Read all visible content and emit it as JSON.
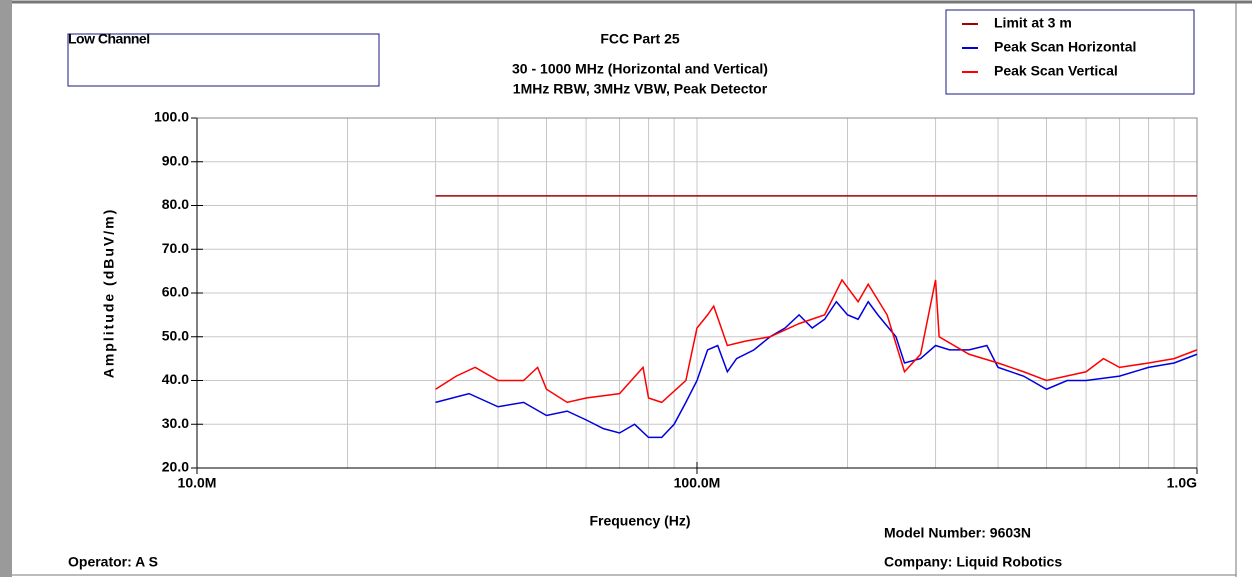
{
  "chart_data": {
    "type": "line",
    "title": "FCC Part 25",
    "subtitle": [
      "30 - 1000 MHz (Horizontal and Vertical)",
      "1MHz RBW, 3MHz VBW, Peak Detector"
    ],
    "box_label": "Low Channel",
    "xlabel": "Frequency (Hz)",
    "ylabel": "Amplitude (dBuV/m)",
    "model": "Model Number: 9603N",
    "operator": "Operator: A S",
    "company": "Company: Liquid Robotics",
    "xscale": "log",
    "grid": true,
    "legend": "upper right",
    "xlim": [
      10000000,
      1000000000
    ],
    "xticks": [
      {
        "value": 10000000,
        "label": "10.0M"
      },
      {
        "value": 100000000,
        "label": "100.0M"
      },
      {
        "value": 1000000000,
        "label": "1.0G"
      }
    ],
    "xminorticks": [
      20000000,
      30000000,
      40000000,
      50000000,
      60000000,
      70000000,
      80000000,
      90000000,
      200000000,
      300000000,
      400000000,
      500000000,
      600000000,
      700000000,
      800000000,
      900000000
    ],
    "ylim": [
      20,
      100
    ],
    "yticks": [
      {
        "value": 20,
        "label": "20.0"
      },
      {
        "value": 30,
        "label": "30.0"
      },
      {
        "value": 40,
        "label": "40.0"
      },
      {
        "value": 50,
        "label": "50.0"
      },
      {
        "value": 60,
        "label": "60.0"
      },
      {
        "value": 70,
        "label": "70.0"
      },
      {
        "value": 80,
        "label": "80.0"
      },
      {
        "value": 90,
        "label": "90.0"
      },
      {
        "value": 100,
        "label": "100.0"
      }
    ],
    "series": [
      {
        "name": "Limit at 3 m",
        "color": "#a00000",
        "x": [
          30000000,
          1000000000
        ],
        "values": [
          82.2,
          82.2
        ]
      },
      {
        "name": "Peak Scan Horizontal",
        "color": "#0000e0",
        "x": [
          30000000,
          35000000,
          40000000,
          45000000,
          50000000,
          55000000,
          60000000,
          65000000,
          70000000,
          75000000,
          80000000,
          85000000,
          90000000,
          95000000,
          100000000,
          105000000,
          110000000,
          115000000,
          120000000,
          130000000,
          140000000,
          150000000,
          160000000,
          170000000,
          180000000,
          190000000,
          200000000,
          210000000,
          220000000,
          230000000,
          250000000,
          260000000,
          280000000,
          300000000,
          320000000,
          350000000,
          380000000,
          400000000,
          450000000,
          500000000,
          550000000,
          600000000,
          700000000,
          800000000,
          900000000,
          1000000000
        ],
        "values": [
          35,
          37,
          34,
          35,
          32,
          33,
          31,
          29,
          28,
          30,
          27,
          27,
          30,
          35,
          40,
          47,
          48,
          42,
          45,
          47,
          50,
          52,
          55,
          52,
          54,
          58,
          55,
          54,
          58,
          55,
          50,
          44,
          45,
          48,
          47,
          47,
          48,
          43,
          41,
          38,
          40,
          40,
          41,
          43,
          44,
          46
        ]
      },
      {
        "name": "Peak Scan Vertical",
        "color": "#ff0000",
        "x": [
          30000000,
          33000000,
          36000000,
          40000000,
          45000000,
          48000000,
          50000000,
          55000000,
          60000000,
          70000000,
          78000000,
          80000000,
          85000000,
          95000000,
          100000000,
          105000000,
          108000000,
          115000000,
          125000000,
          140000000,
          160000000,
          180000000,
          195000000,
          210000000,
          220000000,
          240000000,
          260000000,
          280000000,
          300000000,
          305000000,
          350000000,
          400000000,
          450000000,
          500000000,
          600000000,
          650000000,
          700000000,
          800000000,
          900000000,
          1000000000
        ],
        "values": [
          38,
          41,
          43,
          40,
          40,
          43,
          38,
          35,
          36,
          37,
          43,
          36,
          35,
          40,
          52,
          55,
          57,
          48,
          49,
          50,
          53,
          55,
          63,
          58,
          62,
          55,
          42,
          46,
          63,
          50,
          46,
          44,
          42,
          40,
          42,
          45,
          43,
          44,
          45,
          47
        ]
      }
    ]
  }
}
